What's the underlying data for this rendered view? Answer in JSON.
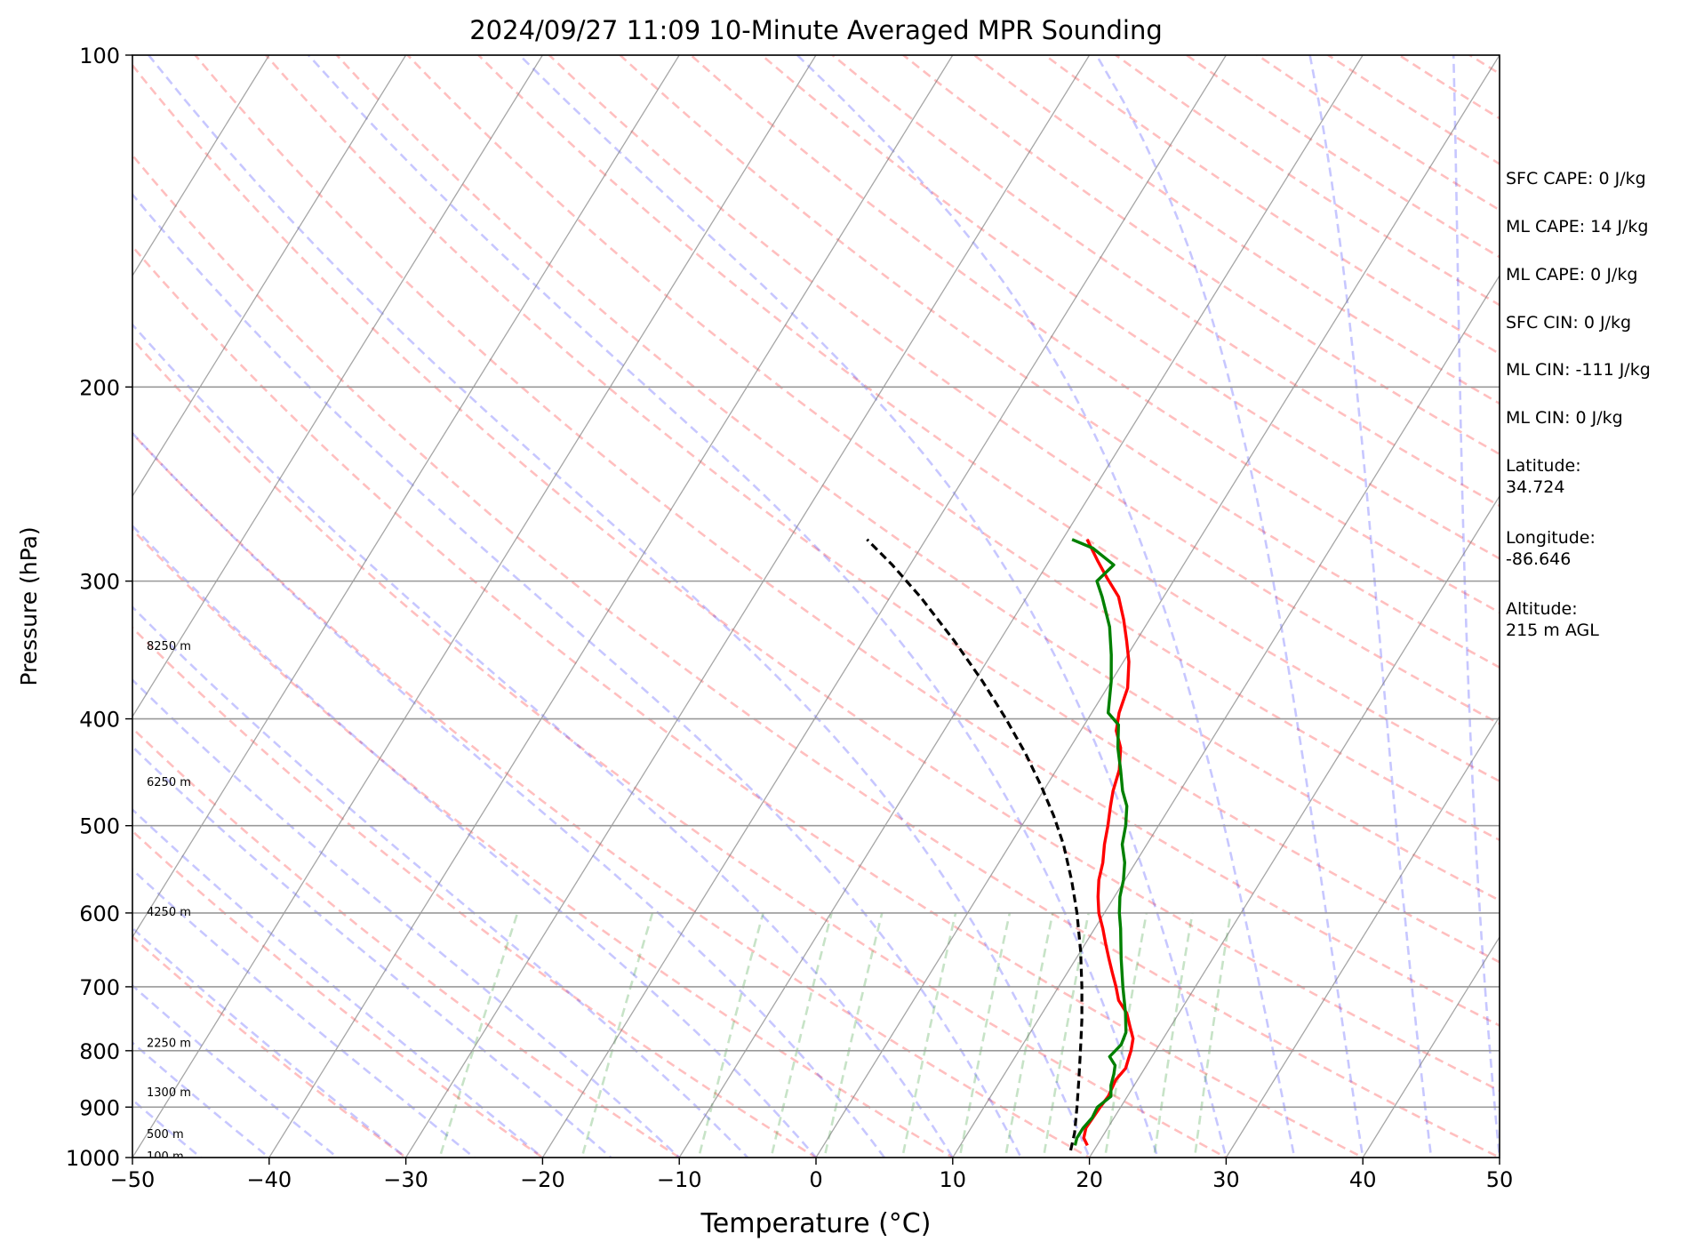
{
  "chart_data": {
    "type": "line",
    "title": "2024/09/27 11:09 10-Minute Averaged MPR Sounding",
    "xlabel": "Temperature (°C)",
    "ylabel": "Pressure (hPa)",
    "xlim": [
      -50,
      50
    ],
    "ylim": [
      1000,
      100
    ],
    "y_scale": "log",
    "skew": "skew-T",
    "x_ticks": [
      -50,
      -40,
      -30,
      -20,
      -10,
      0,
      10,
      20,
      30,
      40,
      50
    ],
    "x_tick_labels": [
      "−50",
      "−40",
      "−30",
      "−20",
      "−10",
      "0",
      "10",
      "20",
      "30",
      "40",
      "50"
    ],
    "y_ticks": [
      1000,
      900,
      800,
      700,
      600,
      500,
      400,
      300,
      200,
      100
    ],
    "y_tick_labels": [
      "1000",
      "900",
      "800",
      "700",
      "600",
      "500",
      "400",
      "300",
      "200",
      "100"
    ],
    "grid": true,
    "height_labels": [
      {
        "text": "8250 m",
        "pressure": 343
      },
      {
        "text": "6250 m",
        "pressure": 456
      },
      {
        "text": "4250 m",
        "pressure": 598
      },
      {
        "text": "2250 m",
        "pressure": 786
      },
      {
        "text": "1300 m",
        "pressure": 872
      },
      {
        "text": "500 m",
        "pressure": 951
      },
      {
        "text": "100 m",
        "pressure": 996
      }
    ],
    "series": [
      {
        "color": "#ff0000",
        "p": [
          975,
          960,
          940,
          900,
          880,
          850,
          830,
          815,
          800,
          780,
          760,
          740,
          720,
          700,
          680,
          660,
          640,
          620,
          600,
          580,
          560,
          540,
          520,
          500,
          480,
          465,
          445,
          425,
          410,
          395,
          375,
          355,
          340,
          325,
          310,
          298,
          288,
          275
        ],
        "t": [
          19.3,
          18.7,
          18.4,
          18.5,
          18.6,
          18.4,
          18.6,
          18.4,
          18.2,
          17.8,
          17.0,
          16.2,
          15.0,
          14.2,
          13.3,
          12.4,
          11.5,
          10.6,
          9.6,
          8.8,
          8.1,
          7.6,
          6.9,
          6.3,
          5.6,
          5.1,
          4.6,
          3.7,
          2.6,
          2.0,
          1.5,
          0.4,
          -0.7,
          -1.9,
          -3.3,
          -5.0,
          -6.4,
          -8.2
        ]
      },
      {
        "color": "#008000",
        "p": [
          975,
          960,
          940,
          920,
          900,
          880,
          860,
          840,
          825,
          810,
          790,
          770,
          740,
          700,
          660,
          620,
          600,
          580,
          560,
          540,
          520,
          500,
          480,
          465,
          445,
          425,
          405,
          395,
          370,
          350,
          330,
          310,
          300,
          290,
          280,
          275
        ],
        "t": [
          18.4,
          18.2,
          18.2,
          18.4,
          18.3,
          18.8,
          18.3,
          18.0,
          17.7,
          16.9,
          17.2,
          17.0,
          16.1,
          14.7,
          13.3,
          11.9,
          11.1,
          10.4,
          9.9,
          9.2,
          8.2,
          7.6,
          6.8,
          5.8,
          4.7,
          3.5,
          2.5,
          1.2,
          0.0,
          -1.2,
          -2.6,
          -4.5,
          -5.6,
          -5.1,
          -7.4,
          -9.3
        ]
      },
      {
        "color": "#000000",
        "dashed": true,
        "p": [
          985,
          950,
          900,
          850,
          800,
          750,
          700,
          650,
          600,
          560,
          520,
          490,
          460,
          430,
          400,
          370,
          340,
          310,
          290,
          275
        ],
        "t": [
          18.3,
          17.8,
          16.8,
          15.7,
          14.5,
          13.2,
          11.7,
          10.0,
          8.0,
          6.1,
          3.9,
          1.9,
          -0.4,
          -3.0,
          -6.0,
          -9.4,
          -13.3,
          -17.8,
          -21.3,
          -24.3
        ]
      }
    ]
  },
  "info_panel": [
    "SFC CAPE: 0 J/kg",
    "ML CAPE: 14 J/kg",
    "ML CAPE: 0 J/kg",
    "SFC CIN: 0 J/kg",
    "ML CIN: -111 J/kg",
    "ML CIN: 0 J/kg",
    "Latitude:\n34.724",
    "Longitude:\n-86.646",
    "Altitude:\n215 m AGL"
  ]
}
